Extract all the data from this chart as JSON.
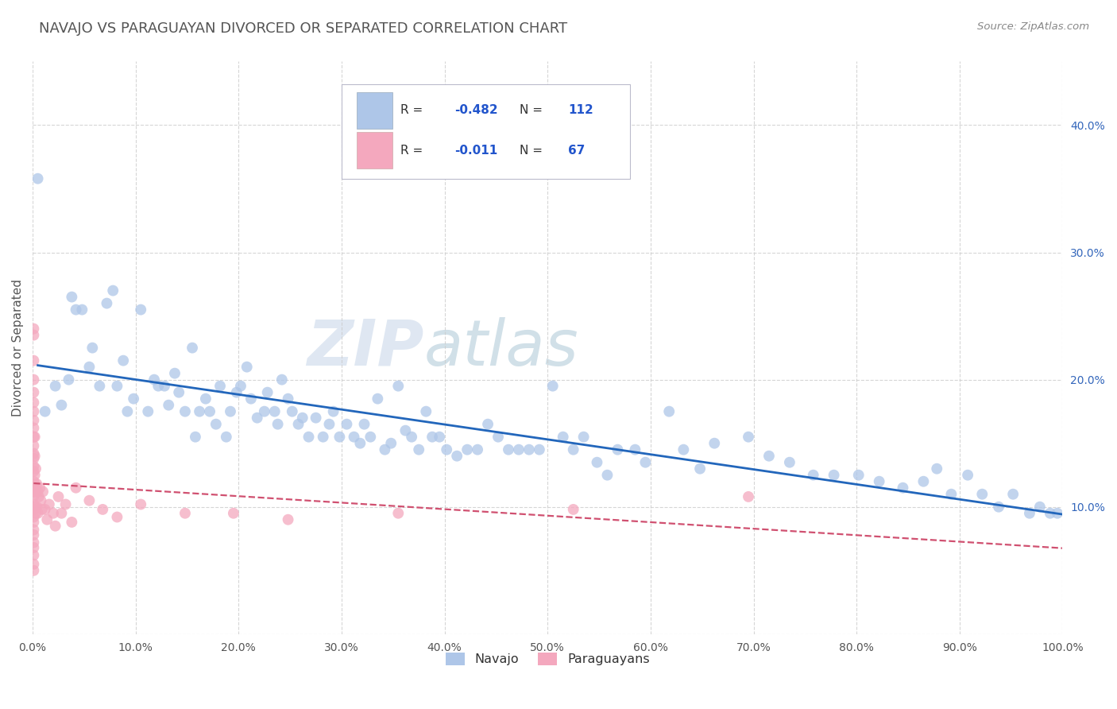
{
  "title": "NAVAJO VS PARAGUAYAN DIVORCED OR SEPARATED CORRELATION CHART",
  "source": "Source: ZipAtlas.com",
  "ylabel": "Divorced or Separated",
  "watermark": "ZIPatlas",
  "navajo_R": -0.482,
  "navajo_N": 112,
  "paraguayan_R": -0.011,
  "paraguayan_N": 67,
  "navajo_color": "#aec6e8",
  "paraguayan_color": "#f4a8be",
  "navajo_line_color": "#2266bb",
  "paraguayan_line_color": "#d05070",
  "background_color": "#ffffff",
  "grid_color": "#cccccc",
  "navajo_x": [
    0.005,
    0.012,
    0.022,
    0.028,
    0.035,
    0.038,
    0.042,
    0.048,
    0.055,
    0.058,
    0.065,
    0.072,
    0.078,
    0.082,
    0.088,
    0.092,
    0.098,
    0.105,
    0.112,
    0.118,
    0.122,
    0.128,
    0.132,
    0.138,
    0.142,
    0.148,
    0.155,
    0.158,
    0.162,
    0.168,
    0.172,
    0.178,
    0.182,
    0.188,
    0.192,
    0.198,
    0.202,
    0.208,
    0.212,
    0.218,
    0.225,
    0.228,
    0.235,
    0.238,
    0.242,
    0.248,
    0.252,
    0.258,
    0.262,
    0.268,
    0.275,
    0.282,
    0.288,
    0.292,
    0.298,
    0.305,
    0.312,
    0.318,
    0.322,
    0.328,
    0.335,
    0.342,
    0.348,
    0.355,
    0.362,
    0.368,
    0.375,
    0.382,
    0.388,
    0.395,
    0.402,
    0.412,
    0.422,
    0.432,
    0.442,
    0.452,
    0.462,
    0.472,
    0.482,
    0.492,
    0.505,
    0.515,
    0.525,
    0.535,
    0.548,
    0.558,
    0.568,
    0.585,
    0.595,
    0.618,
    0.632,
    0.648,
    0.662,
    0.695,
    0.715,
    0.735,
    0.758,
    0.778,
    0.802,
    0.822,
    0.845,
    0.865,
    0.878,
    0.892,
    0.908,
    0.922,
    0.938,
    0.952,
    0.968,
    0.978,
    0.988,
    0.995
  ],
  "navajo_y": [
    0.358,
    0.175,
    0.195,
    0.18,
    0.2,
    0.265,
    0.255,
    0.255,
    0.21,
    0.225,
    0.195,
    0.26,
    0.27,
    0.195,
    0.215,
    0.175,
    0.185,
    0.255,
    0.175,
    0.2,
    0.195,
    0.195,
    0.18,
    0.205,
    0.19,
    0.175,
    0.225,
    0.155,
    0.175,
    0.185,
    0.175,
    0.165,
    0.195,
    0.155,
    0.175,
    0.19,
    0.195,
    0.21,
    0.185,
    0.17,
    0.175,
    0.19,
    0.175,
    0.165,
    0.2,
    0.185,
    0.175,
    0.165,
    0.17,
    0.155,
    0.17,
    0.155,
    0.165,
    0.175,
    0.155,
    0.165,
    0.155,
    0.15,
    0.165,
    0.155,
    0.185,
    0.145,
    0.15,
    0.195,
    0.16,
    0.155,
    0.145,
    0.175,
    0.155,
    0.155,
    0.145,
    0.14,
    0.145,
    0.145,
    0.165,
    0.155,
    0.145,
    0.145,
    0.145,
    0.145,
    0.195,
    0.155,
    0.145,
    0.155,
    0.135,
    0.125,
    0.145,
    0.145,
    0.135,
    0.175,
    0.145,
    0.13,
    0.15,
    0.155,
    0.14,
    0.135,
    0.125,
    0.125,
    0.125,
    0.12,
    0.115,
    0.12,
    0.13,
    0.11,
    0.125,
    0.11,
    0.1,
    0.11,
    0.095,
    0.1,
    0.095,
    0.095
  ],
  "paraguayan_x": [
    0.001,
    0.001,
    0.001,
    0.001,
    0.001,
    0.001,
    0.001,
    0.001,
    0.001,
    0.001,
    0.001,
    0.001,
    0.001,
    0.001,
    0.001,
    0.001,
    0.001,
    0.001,
    0.001,
    0.001,
    0.001,
    0.001,
    0.001,
    0.001,
    0.001,
    0.001,
    0.001,
    0.001,
    0.001,
    0.001,
    0.002,
    0.002,
    0.002,
    0.002,
    0.002,
    0.003,
    0.003,
    0.003,
    0.004,
    0.004,
    0.005,
    0.005,
    0.006,
    0.007,
    0.008,
    0.009,
    0.01,
    0.012,
    0.014,
    0.016,
    0.02,
    0.022,
    0.025,
    0.028,
    0.032,
    0.038,
    0.042,
    0.055,
    0.068,
    0.082,
    0.105,
    0.148,
    0.195,
    0.248,
    0.355,
    0.525,
    0.695
  ],
  "paraguayan_y": [
    0.24,
    0.235,
    0.215,
    0.2,
    0.19,
    0.182,
    0.175,
    0.168,
    0.162,
    0.155,
    0.148,
    0.142,
    0.138,
    0.132,
    0.128,
    0.12,
    0.115,
    0.112,
    0.108,
    0.102,
    0.098,
    0.092,
    0.088,
    0.082,
    0.078,
    0.072,
    0.068,
    0.062,
    0.055,
    0.05,
    0.155,
    0.14,
    0.125,
    0.115,
    0.1,
    0.13,
    0.112,
    0.095,
    0.118,
    0.1,
    0.112,
    0.095,
    0.108,
    0.115,
    0.105,
    0.098,
    0.112,
    0.098,
    0.09,
    0.102,
    0.095,
    0.085,
    0.108,
    0.095,
    0.102,
    0.088,
    0.115,
    0.105,
    0.098,
    0.092,
    0.102,
    0.095,
    0.095,
    0.09,
    0.095,
    0.098,
    0.108
  ],
  "xlim": [
    0.0,
    1.0
  ],
  "ylim": [
    0.0,
    0.45
  ],
  "xticks": [
    0.0,
    0.1,
    0.2,
    0.3,
    0.4,
    0.5,
    0.6,
    0.7,
    0.8,
    0.9,
    1.0
  ],
  "yticks": [
    0.0,
    0.1,
    0.2,
    0.3,
    0.4
  ],
  "xtick_labels": [
    "0.0%",
    "10.0%",
    "20.0%",
    "30.0%",
    "40.0%",
    "50.0%",
    "60.0%",
    "70.0%",
    "80.0%",
    "90.0%",
    "100.0%"
  ],
  "ytick_labels": [
    "",
    "10.0%",
    "20.0%",
    "30.0%",
    "40.0%"
  ],
  "legend_box_color": "#f0f4fa",
  "legend_border_color": "#bbbbcc"
}
